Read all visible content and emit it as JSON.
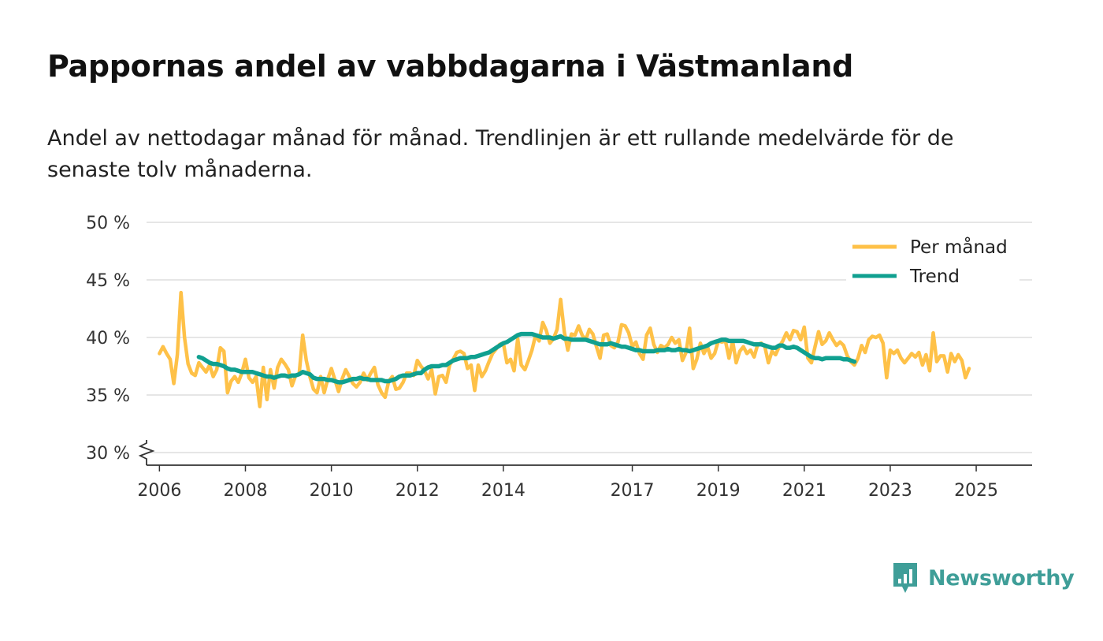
{
  "title": "Pappornas andel av vabbdagarna i Västmanland",
  "subtitle": "Andel av nettodagar månad för månad. Trendlinjen är ett rullande medelvärde för de senaste tolv månaderna.",
  "brand": "Newsworthy",
  "colors": {
    "monthly": "#fec148",
    "trend": "#10a090",
    "grid": "#dddddd",
    "axis": "#333333",
    "brand": "#3f9e98"
  },
  "chart_data": {
    "type": "line",
    "title": "Pappornas andel av vabbdagarna i Västmanland",
    "xlabel": "",
    "ylabel": "",
    "xlim": [
      2005.7,
      2026.3
    ],
    "ylim": [
      30,
      50
    ],
    "y_ticks": [
      30,
      35,
      40,
      45,
      50
    ],
    "y_tick_labels": [
      "30 %",
      "35 %",
      "40 %",
      "45 %",
      "50 %"
    ],
    "x_ticks": [
      2006,
      2008,
      2010,
      2012,
      2014,
      2017,
      2019,
      2021,
      2023,
      2025
    ],
    "x_tick_labels": [
      "2006",
      "2008",
      "2010",
      "2012",
      "2014",
      "2017",
      "2019",
      "2021",
      "2023",
      "2025"
    ],
    "legend": {
      "position": "top-right",
      "entries": [
        "Per månad",
        "Trend"
      ]
    },
    "series": [
      {
        "name": "Per månad",
        "x_start": 2006.0,
        "step": 0.083333,
        "values": [
          38.6,
          39.2,
          38.6,
          38.1,
          36.0,
          38.5,
          43.9,
          40.0,
          37.7,
          36.9,
          36.7,
          37.8,
          37.4,
          37.0,
          37.6,
          36.6,
          37.2,
          39.1,
          38.8,
          35.2,
          36.2,
          36.6,
          36.1,
          36.9,
          38.1,
          36.5,
          36.1,
          36.6,
          34.0,
          37.4,
          34.6,
          37.2,
          35.6,
          37.4,
          38.1,
          37.7,
          37.2,
          35.8,
          36.7,
          36.8,
          40.2,
          38.0,
          36.6,
          35.5,
          35.2,
          36.6,
          35.2,
          36.4,
          37.3,
          36.3,
          35.3,
          36.4,
          37.2,
          36.6,
          36.0,
          35.7,
          36.1,
          36.9,
          36.3,
          36.9,
          37.4,
          35.9,
          35.2,
          34.8,
          36.2,
          36.6,
          35.5,
          35.6,
          36.1,
          36.9,
          36.9,
          36.7,
          38.0,
          37.5,
          37.1,
          36.4,
          37.2,
          35.1,
          36.6,
          36.7,
          36.1,
          37.6,
          38.1,
          38.7,
          38.8,
          38.6,
          37.3,
          37.6,
          35.4,
          37.6,
          36.6,
          37.1,
          37.9,
          38.6,
          39.0,
          39.4,
          39.5,
          37.8,
          38.1,
          37.1,
          39.9,
          37.6,
          37.2,
          38.0,
          38.9,
          40.2,
          39.7,
          41.3,
          40.6,
          39.5,
          39.9,
          40.7,
          43.3,
          40.5,
          38.9,
          40.3,
          40.2,
          41.0,
          40.2,
          39.8,
          40.7,
          40.3,
          39.2,
          38.2,
          40.2,
          40.3,
          39.3,
          39.1,
          39.6,
          41.1,
          41.0,
          40.4,
          39.2,
          39.6,
          38.6,
          38.1,
          40.2,
          40.8,
          39.4,
          38.7,
          39.3,
          39.1,
          39.4,
          40.0,
          39.5,
          39.8,
          38.0,
          38.7,
          40.8,
          37.3,
          38.1,
          39.5,
          38.6,
          39.2,
          38.2,
          38.6,
          39.7,
          39.6,
          39.7,
          38.2,
          39.7,
          37.8,
          38.8,
          39.2,
          38.6,
          38.9,
          38.3,
          39.4,
          39.5,
          39.2,
          37.8,
          38.8,
          38.5,
          39.2,
          39.7,
          40.4,
          39.8,
          40.6,
          40.5,
          39.8,
          40.9,
          38.2,
          37.8,
          39.2,
          40.5,
          39.4,
          39.7,
          40.4,
          39.8,
          39.3,
          39.6,
          39.3,
          38.4,
          37.9,
          37.6,
          38.2,
          39.3,
          38.7,
          39.8,
          40.1,
          40.0,
          40.2,
          39.5,
          36.5,
          38.9,
          38.6,
          38.9,
          38.2,
          37.8,
          38.2,
          38.6,
          38.3,
          38.7,
          37.6,
          38.5,
          37.1,
          40.4,
          37.9,
          38.4,
          38.4,
          37.0,
          38.6,
          37.9,
          38.5,
          38.0,
          36.5,
          37.3
        ]
      },
      {
        "name": "Trend",
        "x_start": 2006.9167,
        "step": 0.083333,
        "values": [
          38.3,
          38.2,
          38.0,
          37.8,
          37.7,
          37.7,
          37.6,
          37.5,
          37.3,
          37.2,
          37.2,
          37.1,
          37.0,
          37.0,
          37.0,
          37.0,
          36.9,
          36.8,
          36.7,
          36.6,
          36.6,
          36.5,
          36.6,
          36.7,
          36.7,
          36.6,
          36.7,
          36.7,
          36.8,
          37.0,
          36.9,
          36.8,
          36.5,
          36.4,
          36.4,
          36.4,
          36.3,
          36.3,
          36.2,
          36.1,
          36.1,
          36.2,
          36.3,
          36.4,
          36.4,
          36.5,
          36.4,
          36.4,
          36.3,
          36.3,
          36.3,
          36.3,
          36.2,
          36.2,
          36.3,
          36.4,
          36.6,
          36.7,
          36.7,
          36.7,
          36.8,
          36.9,
          36.9,
          37.2,
          37.4,
          37.5,
          37.5,
          37.5,
          37.6,
          37.6,
          37.8,
          38.0,
          38.1,
          38.2,
          38.2,
          38.2,
          38.3,
          38.3,
          38.4,
          38.5,
          38.6,
          38.7,
          38.9,
          39.1,
          39.3,
          39.5,
          39.6,
          39.8,
          40.0,
          40.2,
          40.3,
          40.3,
          40.3,
          40.3,
          40.2,
          40.1,
          40.0,
          40.0,
          40.0,
          39.9,
          40.0,
          40.1,
          39.9,
          39.9,
          39.8,
          39.8,
          39.8,
          39.8,
          39.8,
          39.7,
          39.6,
          39.5,
          39.4,
          39.4,
          39.4,
          39.5,
          39.4,
          39.3,
          39.2,
          39.2,
          39.1,
          39.0,
          38.9,
          38.9,
          38.8,
          38.8,
          38.8,
          38.8,
          38.9,
          38.9,
          38.9,
          39.0,
          38.9,
          38.9,
          39.0,
          38.9,
          38.9,
          38.8,
          38.9,
          39.0,
          39.1,
          39.2,
          39.3,
          39.5,
          39.6,
          39.7,
          39.8,
          39.8,
          39.7,
          39.7,
          39.7,
          39.7,
          39.7,
          39.6,
          39.5,
          39.4,
          39.4,
          39.4,
          39.3,
          39.2,
          39.1,
          39.1,
          39.3,
          39.3,
          39.1,
          39.1,
          39.2,
          39.1,
          38.9,
          38.7,
          38.5,
          38.3,
          38.2,
          38.2,
          38.1,
          38.2,
          38.2,
          38.2,
          38.2,
          38.2,
          38.1,
          38.1,
          38.0,
          37.9
        ]
      }
    ]
  }
}
